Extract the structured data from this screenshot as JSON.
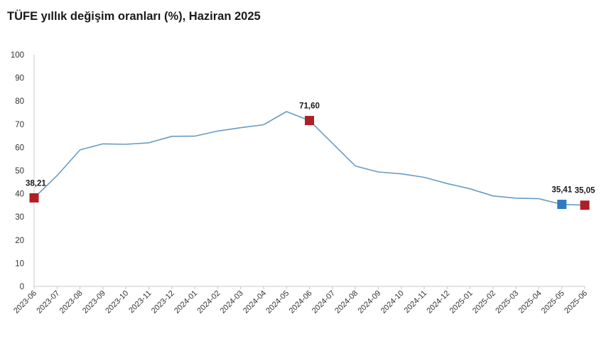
{
  "chart_data": {
    "type": "line",
    "title": "TÜFE yıllık değişim oranları (%), Haziran 2025",
    "xlabel": "",
    "ylabel": "",
    "ylim": [
      0,
      100
    ],
    "y_ticks": [
      0,
      10,
      20,
      30,
      40,
      50,
      60,
      70,
      80,
      90,
      100
    ],
    "grid": false,
    "legend": "none",
    "categories": [
      "2023-06",
      "2023-07",
      "2023-08",
      "2023-09",
      "2023-10",
      "2023-11",
      "2023-12",
      "2024-01",
      "2024-02",
      "2024-03",
      "2024-04",
      "2024-05",
      "2024-06",
      "2024-07",
      "2024-08",
      "2024-09",
      "2024-10",
      "2024-11",
      "2024-12",
      "2025-01",
      "2025-02",
      "2025-03",
      "2025-04",
      "2025-05",
      "2025-06"
    ],
    "series": [
      {
        "values": [
          38.21,
          47.83,
          58.94,
          61.53,
          61.36,
          61.98,
          64.77,
          64.86,
          67.07,
          68.5,
          69.8,
          75.45,
          71.6,
          61.78,
          51.97,
          49.38,
          48.58,
          47.09,
          44.38,
          42.12,
          39.05,
          38.1,
          37.86,
          35.41,
          35.05
        ],
        "color": "#6a9bc3"
      }
    ],
    "markers": [
      {
        "category": "2023-06",
        "value": 38.21,
        "label": "38,21",
        "color": "#b01e26"
      },
      {
        "category": "2024-06",
        "value": 71.6,
        "label": "71,60",
        "color": "#b01e26"
      },
      {
        "category": "2025-05",
        "value": 35.41,
        "label": "35,41",
        "color": "#2e7ac0"
      },
      {
        "category": "2025-06",
        "value": 35.05,
        "label": "35,05",
        "color": "#b01e26"
      }
    ]
  }
}
